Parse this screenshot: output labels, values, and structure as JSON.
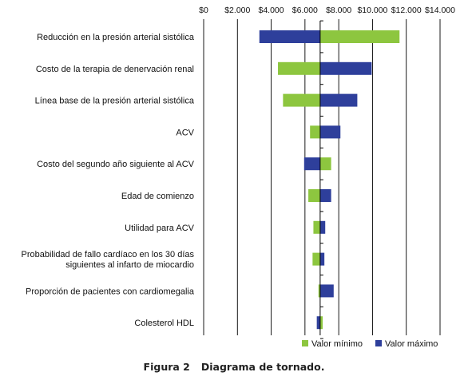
{
  "chart_data": {
    "type": "bar",
    "subtype": "tornado",
    "title": "",
    "xlabel": "",
    "ylabel": "",
    "xlim": [
      0,
      14000
    ],
    "tick_labels": [
      "$0",
      "$2.000",
      "$4.000",
      "$6.000",
      "$8.000",
      "$10.000",
      "$12.000",
      "$14.000"
    ],
    "tick_values": [
      0,
      2000,
      4000,
      6000,
      8000,
      10000,
      12000,
      14000
    ],
    "baseline": 6900,
    "categories": [
      "Reducción en la presión arterial sistólica",
      "Costo de la terapia de denervación renal",
      "Línea base de la presión arterial sistólica",
      "ACV",
      "Costo del segundo año siguiente al ACV",
      "Edad de comienzo",
      "Utilidad para ACV",
      "Probabilidad de fallo cardíaco en los 30 días siguientes al infarto de miocardio",
      "Proporción de pacientes con cardiomegalia",
      "Colesterol HDL"
    ],
    "category_lines": [
      [
        "Reducción en la presión arterial sistólica"
      ],
      [
        "Costo de la terapia de denervación renal"
      ],
      [
        "Línea base de la presión arterial sistólica"
      ],
      [
        "ACV"
      ],
      [
        "Costo del segundo año siguiente al ACV"
      ],
      [
        "Edad de comienzo"
      ],
      [
        "Utilidad para ACV"
      ],
      [
        "Probabilidad de fallo cardíaco en los 30 días",
        "siguientes al infarto de miocardio"
      ],
      [
        "Proporción de pacientes con cardiomegalia"
      ],
      [
        "Colesterol HDL"
      ]
    ],
    "series": [
      {
        "name": "Valor mínimo",
        "color": "#8dc63f",
        "values": [
          11600,
          4400,
          4700,
          6300,
          7550,
          6200,
          6500,
          6450,
          6800,
          7050
        ]
      },
      {
        "name": "Valor máximo",
        "color": "#2e3f9b",
        "values": [
          3300,
          9950,
          9100,
          8100,
          5950,
          7550,
          7200,
          7150,
          7700,
          6700
        ]
      }
    ],
    "grid": true,
    "legend_position": "bottom-right"
  },
  "caption": {
    "label": "Figura 2",
    "text": "Diagrama de tornado."
  }
}
